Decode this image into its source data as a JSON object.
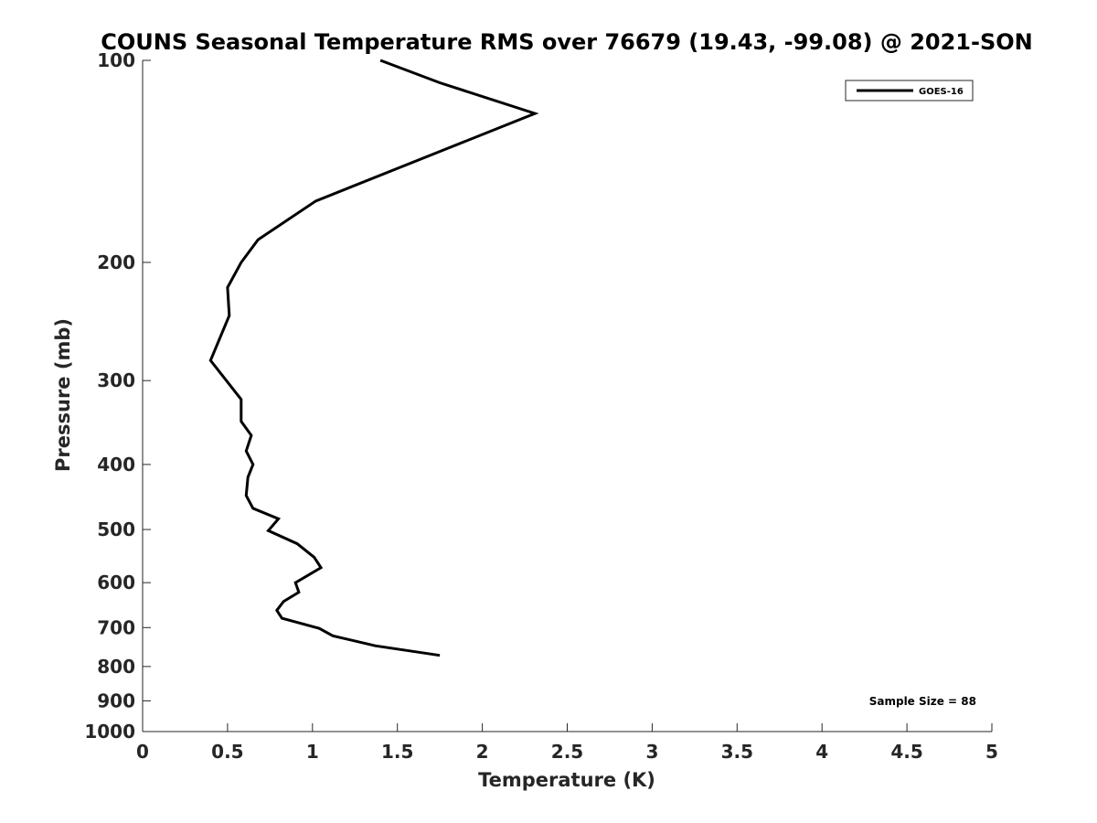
{
  "chart_data": {
    "type": "line",
    "title": "COUNS Seasonal Temperature RMS over 76679 (19.43, -99.08) @ 2021-SON",
    "xlabel": "Temperature (K)",
    "ylabel": "Pressure (mb)",
    "xlim": [
      0,
      5
    ],
    "ylim": [
      100,
      1000
    ],
    "y_scale": "log",
    "y_reversed": true,
    "grid": false,
    "x_ticks": [
      {
        "value": 0,
        "label": "0"
      },
      {
        "value": 0.5,
        "label": "0.5"
      },
      {
        "value": 1,
        "label": "1"
      },
      {
        "value": 1.5,
        "label": "1.5"
      },
      {
        "value": 2,
        "label": "2"
      },
      {
        "value": 2.5,
        "label": "2.5"
      },
      {
        "value": 3,
        "label": "3"
      },
      {
        "value": 3.5,
        "label": "3.5"
      },
      {
        "value": 4,
        "label": "4"
      },
      {
        "value": 4.5,
        "label": "4.5"
      },
      {
        "value": 5,
        "label": "5"
      }
    ],
    "y_ticks": [
      {
        "value": 100,
        "label": "100"
      },
      {
        "value": 200,
        "label": "200"
      },
      {
        "value": 300,
        "label": "300"
      },
      {
        "value": 400,
        "label": "400"
      },
      {
        "value": 500,
        "label": "500"
      },
      {
        "value": 600,
        "label": "600"
      },
      {
        "value": 700,
        "label": "700"
      },
      {
        "value": 800,
        "label": "800"
      },
      {
        "value": 900,
        "label": "900"
      },
      {
        "value": 1000,
        "label": "1000"
      }
    ],
    "legend_position": "top-right",
    "series": [
      {
        "name": "GOES-16",
        "color": "#000000",
        "points": [
          {
            "x": 1.4,
            "p": 100
          },
          {
            "x": 1.75,
            "p": 108
          },
          {
            "x": 2.31,
            "p": 120
          },
          {
            "x": 1.74,
            "p": 137
          },
          {
            "x": 1.02,
            "p": 162
          },
          {
            "x": 0.68,
            "p": 185
          },
          {
            "x": 0.58,
            "p": 200
          },
          {
            "x": 0.5,
            "p": 218
          },
          {
            "x": 0.51,
            "p": 240
          },
          {
            "x": 0.4,
            "p": 280
          },
          {
            "x": 0.58,
            "p": 320
          },
          {
            "x": 0.58,
            "p": 345
          },
          {
            "x": 0.64,
            "p": 362
          },
          {
            "x": 0.61,
            "p": 382
          },
          {
            "x": 0.65,
            "p": 400
          },
          {
            "x": 0.62,
            "p": 418
          },
          {
            "x": 0.61,
            "p": 445
          },
          {
            "x": 0.65,
            "p": 465
          },
          {
            "x": 0.8,
            "p": 482
          },
          {
            "x": 0.74,
            "p": 502
          },
          {
            "x": 0.91,
            "p": 525
          },
          {
            "x": 1.01,
            "p": 550
          },
          {
            "x": 1.05,
            "p": 570
          },
          {
            "x": 0.9,
            "p": 600
          },
          {
            "x": 0.92,
            "p": 620
          },
          {
            "x": 0.83,
            "p": 640
          },
          {
            "x": 0.79,
            "p": 660
          },
          {
            "x": 0.82,
            "p": 678
          },
          {
            "x": 1.04,
            "p": 702
          },
          {
            "x": 1.12,
            "p": 720
          },
          {
            "x": 1.37,
            "p": 745
          },
          {
            "x": 1.75,
            "p": 770
          }
        ]
      }
    ],
    "annotations": [
      {
        "text": "Sample Size = 88",
        "position": "bottom-right"
      }
    ]
  }
}
